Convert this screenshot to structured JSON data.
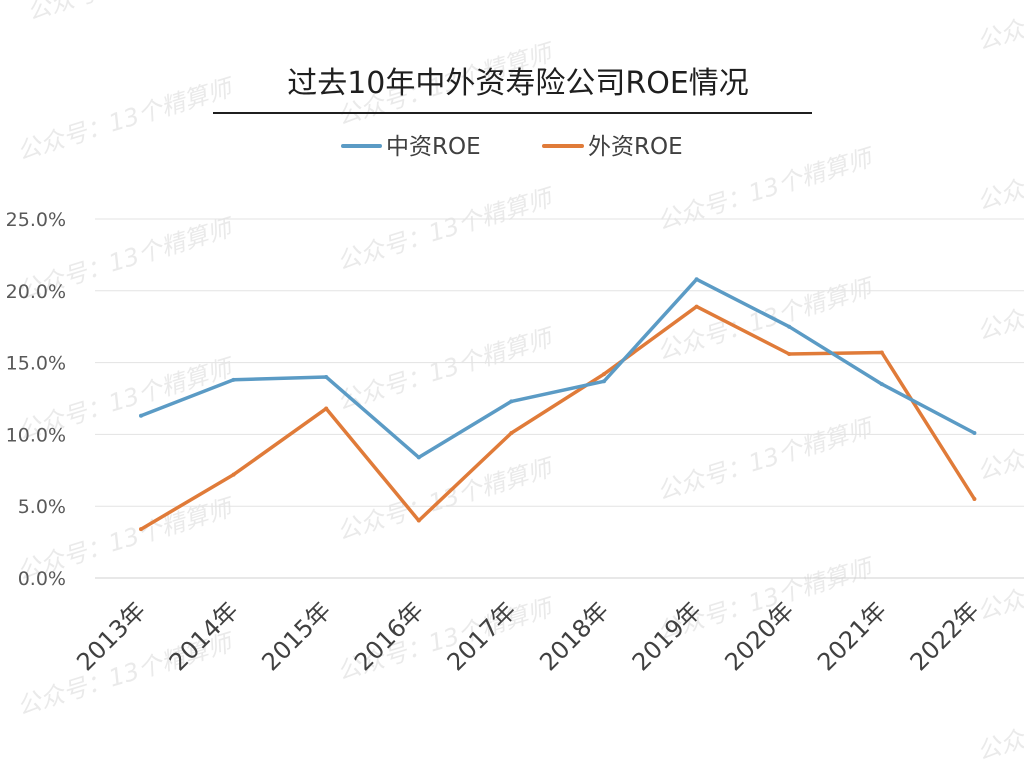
{
  "watermark": "公众号：13个精算师",
  "chart_data": {
    "type": "line",
    "title": "过去10年中外资寿险公司ROE情况",
    "categories": [
      "2013年",
      "2014年",
      "2015年",
      "2016年",
      "2017年",
      "2018年",
      "2019年",
      "2020年",
      "2021年",
      "2022年"
    ],
    "series": [
      {
        "name": "中资ROE",
        "color": "#5b9bc5",
        "values": [
          11.3,
          13.8,
          14.0,
          8.4,
          12.3,
          13.7,
          20.8,
          17.5,
          13.5,
          10.1
        ]
      },
      {
        "name": "外资ROE",
        "color": "#e07b39",
        "values": [
          3.4,
          7.2,
          11.8,
          4.0,
          10.1,
          14.2,
          18.9,
          15.6,
          15.7,
          5.5
        ]
      }
    ],
    "yticks": [
      "0.0%",
      "5.0%",
      "10.0%",
      "15.0%",
      "20.0%",
      "25.0%"
    ],
    "ylim": [
      0,
      25
    ],
    "grid": true,
    "legend_position": "top-center"
  }
}
